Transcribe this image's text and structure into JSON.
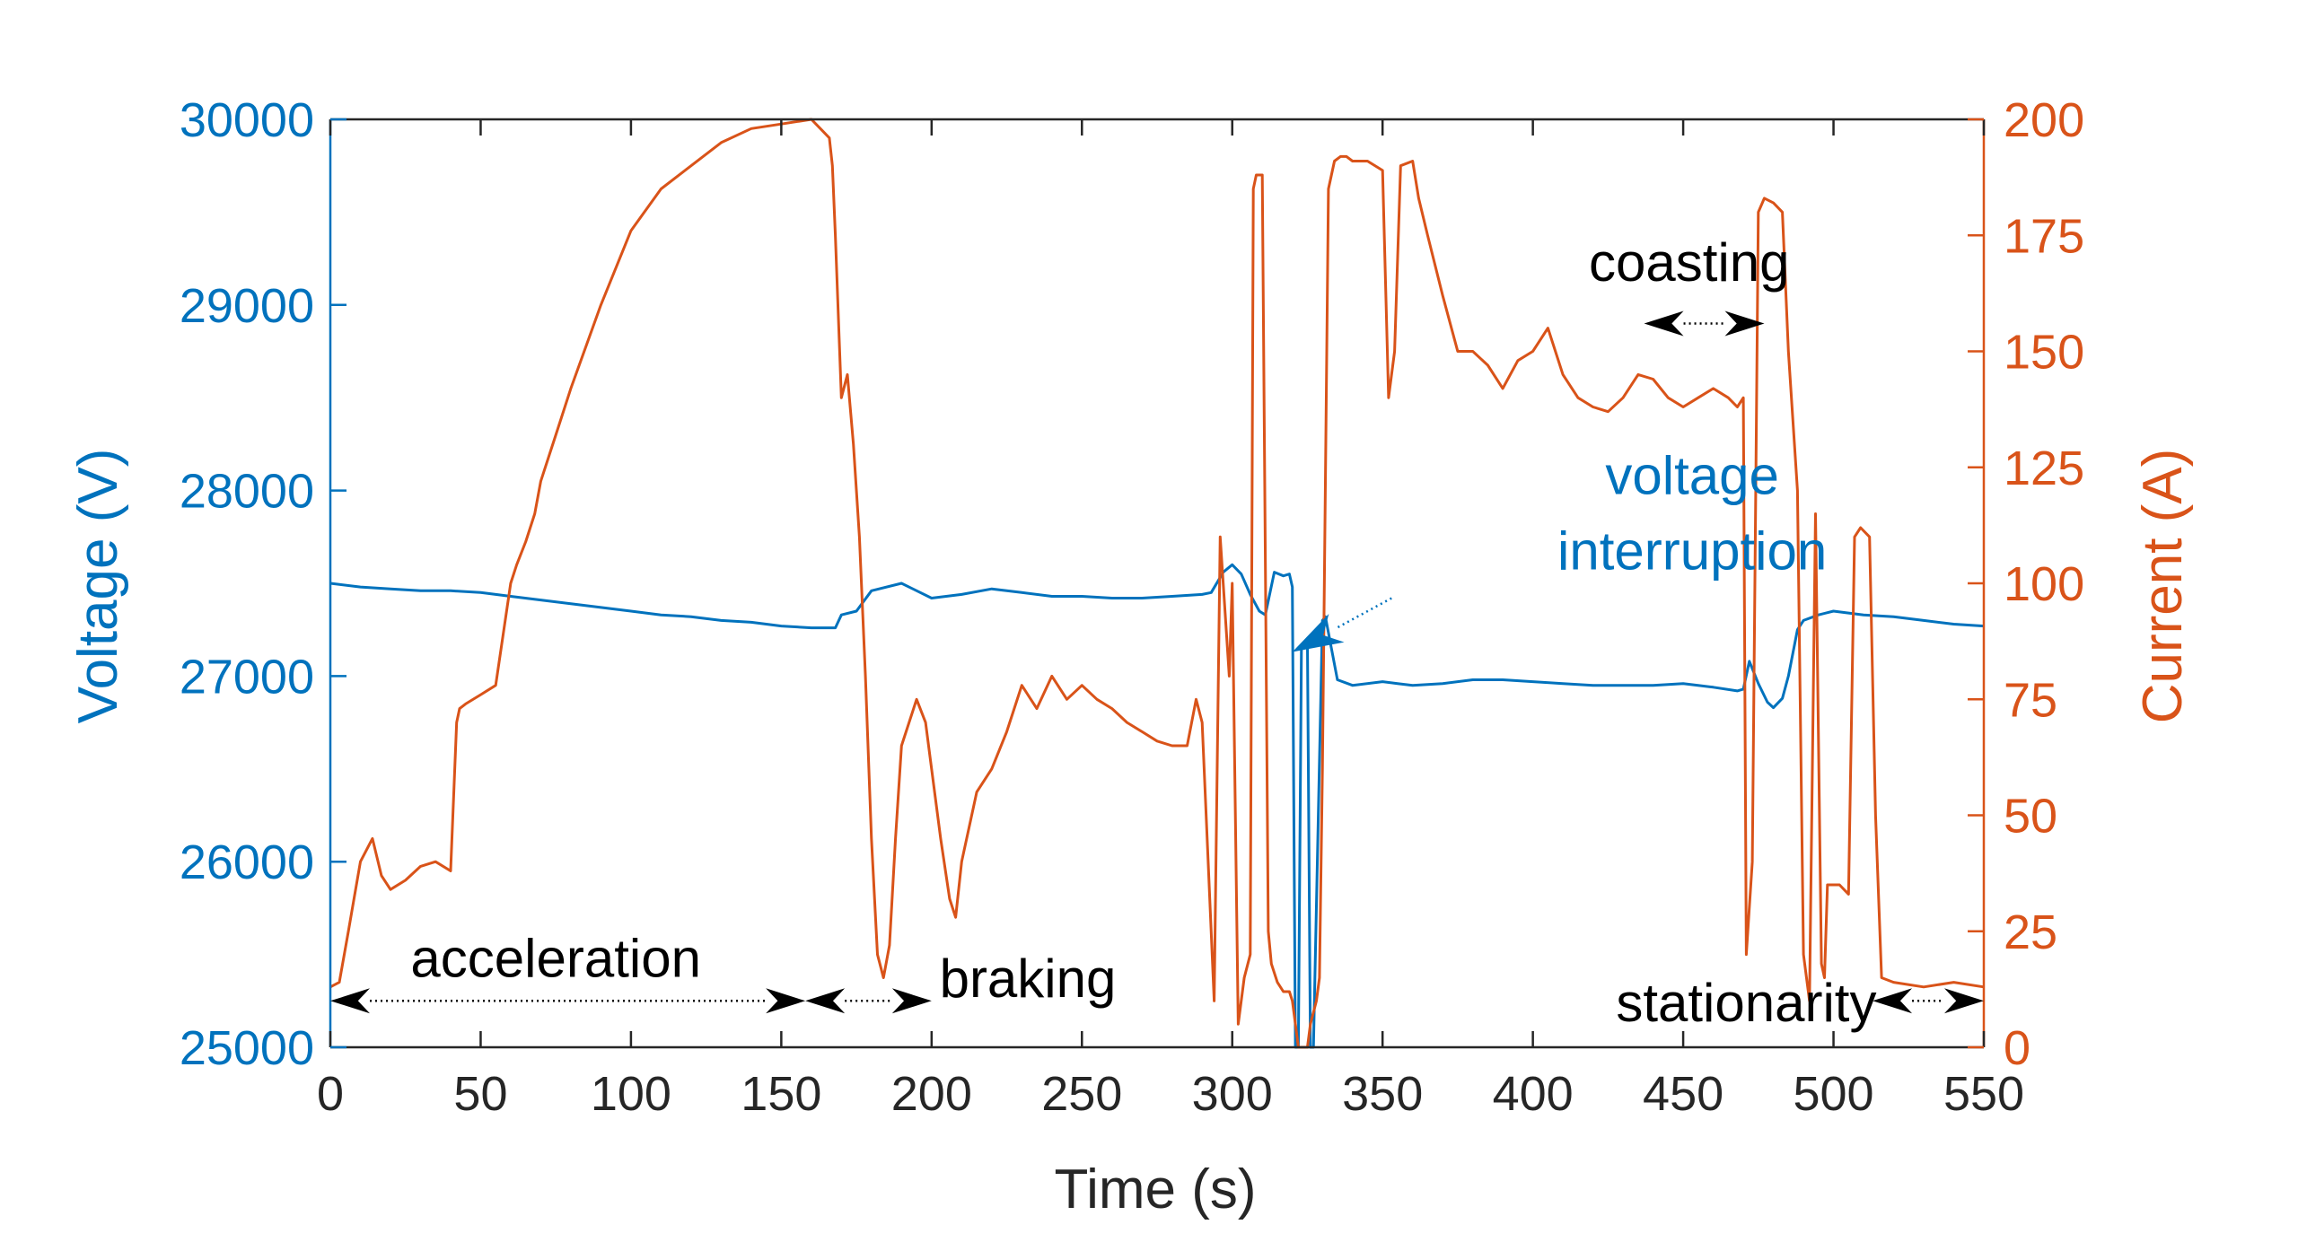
{
  "chart_data": {
    "type": "line",
    "title": "",
    "xlabel": "Time (s)",
    "ylabel_left": "Voltage (V)",
    "ylabel_right": "Current (A)",
    "xlim": [
      0,
      550
    ],
    "ylim_left": [
      25000,
      30000
    ],
    "ylim_right": [
      0,
      200
    ],
    "x_ticks": [
      "0",
      "50",
      "100",
      "150",
      "200",
      "250",
      "300",
      "350",
      "400",
      "450",
      "500",
      "550"
    ],
    "y_left_ticks": [
      "25000",
      "26000",
      "27000",
      "28000",
      "29000",
      "30000"
    ],
    "y_right_ticks": [
      "0",
      "25",
      "50",
      "75",
      "100",
      "125",
      "150",
      "175",
      "200"
    ],
    "colors": {
      "voltage": "#0072BD",
      "current": "#D95319",
      "annotation": "#000000"
    },
    "series": [
      {
        "name": "Voltage",
        "axis": "left",
        "x": [
          0,
          10,
          20,
          30,
          40,
          50,
          60,
          70,
          80,
          90,
          100,
          110,
          120,
          130,
          140,
          150,
          160,
          168,
          170,
          175,
          180,
          190,
          200,
          210,
          220,
          230,
          240,
          250,
          260,
          270,
          280,
          290,
          293,
          297,
          300,
          303,
          306,
          309,
          311,
          314,
          317,
          319,
          320,
          321,
          322,
          323,
          325,
          326,
          327,
          330,
          331,
          333,
          335,
          340,
          350,
          355,
          360,
          370,
          380,
          390,
          400,
          410,
          420,
          430,
          440,
          450,
          460,
          468,
          470,
          472,
          475,
          478,
          480,
          483,
          485,
          488,
          490,
          495,
          500,
          510,
          520,
          530,
          540,
          550
        ],
        "values": [
          27500,
          27480,
          27470,
          27460,
          27460,
          27450,
          27430,
          27410,
          27390,
          27370,
          27350,
          27330,
          27320,
          27300,
          27290,
          27270,
          27260,
          27260,
          27330,
          27350,
          27460,
          27500,
          27420,
          27440,
          27470,
          27450,
          27430,
          27430,
          27420,
          27420,
          27430,
          27440,
          27450,
          27560,
          27600,
          27550,
          27440,
          27350,
          27330,
          27560,
          27540,
          27550,
          27480,
          25000,
          25000,
          27150,
          27180,
          25000,
          25000,
          27300,
          27320,
          27150,
          26980,
          26950,
          26970,
          26960,
          26950,
          26960,
          26980,
          26980,
          26970,
          26960,
          26950,
          26950,
          26950,
          26960,
          26940,
          26920,
          26930,
          27080,
          26960,
          26860,
          26830,
          26880,
          27000,
          27250,
          27300,
          27330,
          27350,
          27330,
          27320,
          27300,
          27280,
          27270
        ]
      },
      {
        "name": "Current",
        "axis": "right",
        "x": [
          0,
          3,
          6,
          10,
          14,
          17,
          20,
          25,
          30,
          35,
          40,
          42,
          43,
          45,
          50,
          55,
          60,
          62,
          65,
          68,
          70,
          75,
          80,
          90,
          100,
          110,
          120,
          130,
          140,
          150,
          160,
          163,
          166,
          167,
          168,
          170,
          172,
          174,
          176,
          178,
          180,
          182,
          184,
          186,
          188,
          190,
          195,
          198,
          200,
          203,
          206,
          208,
          210,
          215,
          220,
          225,
          230,
          235,
          240,
          245,
          250,
          255,
          260,
          265,
          270,
          275,
          280,
          285,
          288,
          290,
          292,
          294,
          296,
          299,
          300,
          302,
          304,
          306,
          307,
          308,
          310,
          312,
          313,
          315,
          317,
          319,
          320,
          321,
          322,
          323,
          325,
          326,
          328,
          329,
          330,
          332,
          334,
          336,
          338,
          340,
          345,
          350,
          352,
          354,
          356,
          360,
          362,
          365,
          370,
          375,
          380,
          385,
          390,
          395,
          400,
          405,
          410,
          415,
          420,
          425,
          430,
          435,
          440,
          445,
          450,
          455,
          460,
          465,
          468,
          470,
          471,
          473,
          475,
          477,
          480,
          483,
          485,
          488,
          490,
          492,
          494,
          496,
          497,
          498,
          500,
          502,
          505,
          507,
          509,
          512,
          514,
          516,
          520,
          530,
          540,
          550
        ],
        "values": [
          13,
          14,
          25,
          40,
          45,
          37,
          34,
          36,
          39,
          40,
          38,
          70,
          73,
          74,
          76,
          78,
          100,
          104,
          109,
          115,
          122,
          132,
          142,
          160,
          176,
          185,
          190,
          195,
          198,
          199,
          200,
          198,
          196,
          190,
          175,
          140,
          145,
          130,
          110,
          80,
          45,
          20,
          15,
          22,
          45,
          65,
          75,
          70,
          60,
          45,
          32,
          28,
          40,
          55,
          60,
          68,
          78,
          73,
          80,
          75,
          78,
          75,
          73,
          70,
          68,
          66,
          65,
          65,
          75,
          70,
          40,
          10,
          110,
          80,
          100,
          5,
          15,
          20,
          185,
          188,
          188,
          25,
          18,
          14,
          12,
          12,
          10,
          5,
          0,
          0,
          0,
          5,
          10,
          15,
          60,
          185,
          191,
          192,
          192,
          191,
          191,
          189,
          140,
          150,
          190,
          191,
          183,
          175,
          162,
          150,
          150,
          147,
          142,
          148,
          150,
          155,
          145,
          140,
          138,
          137,
          140,
          145,
          144,
          140,
          138,
          140,
          142,
          140,
          138,
          140,
          20,
          40,
          180,
          183,
          182,
          180,
          150,
          120,
          20,
          10,
          115,
          18,
          15,
          35,
          35,
          35,
          33,
          110,
          112,
          110,
          50,
          15,
          14,
          13,
          14,
          13
        ]
      }
    ],
    "annotations": [
      {
        "text": "acceleration",
        "x": 75,
        "y_left": 25380,
        "arrow_from": 0,
        "arrow_to": 158,
        "arrow_y_left": 25250
      },
      {
        "text": "braking",
        "x": 232,
        "y_left": 25270,
        "arrow_from": 158,
        "arrow_to": 200,
        "arrow_y_left": 25250
      },
      {
        "text": "coasting",
        "x": 452,
        "y_left": 29130,
        "arrow_from": 437,
        "arrow_to": 477,
        "arrow_y_left": 28900
      },
      {
        "text": "stationarity",
        "x": 471,
        "y_left": 25140,
        "arrow_from": 513,
        "arrow_to": 550,
        "arrow_y_left": 25250
      },
      {
        "text_lines": [
          "voltage",
          "interruption"
        ],
        "color": "#0072BD",
        "x": 453,
        "y_left": 27980,
        "arrow_from_x": 353,
        "arrow_from_y_left": 27420,
        "arrow_to_x": 320,
        "arrow_to_y_left": 27130
      }
    ]
  }
}
